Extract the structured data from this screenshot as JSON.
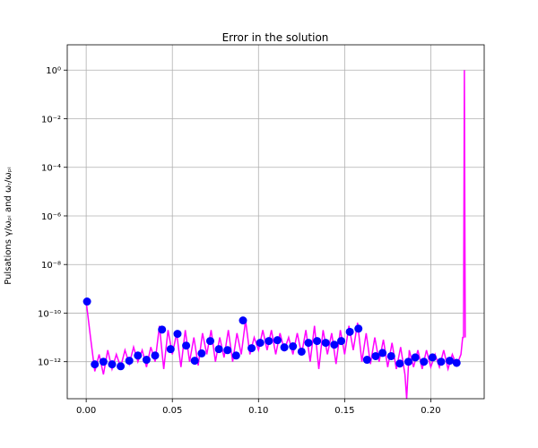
{
  "chart_data": {
    "type": "line",
    "title": "Error in the solution",
    "y_label": "Pulsations  γ/ωₚᵢ and ωᵣ/ωₚᵢ",
    "xlim": [
      -0.011,
      0.231
    ],
    "ylim": [
      3e-14,
      11
    ],
    "log_y": true,
    "grid": true,
    "xticks": [
      {
        "value": 0,
        "label": "0.00"
      },
      0.05,
      {
        "value": 0.1,
        "label": "0.10"
      },
      0.15,
      {
        "value": 0.2,
        "label": "0.20"
      }
    ],
    "yticks": [
      {
        "value": 1,
        "label": "10⁰"
      },
      {
        "value": 0.01,
        "label": "10⁻²"
      },
      {
        "value": 0.0001,
        "label": "10⁻⁴"
      },
      {
        "value": 1e-06,
        "label": "10⁻⁶"
      },
      {
        "value": 1e-08,
        "label": "10⁻⁸"
      },
      {
        "value": 1e-10,
        "label": "10⁻¹⁰"
      },
      {
        "value": 1e-12,
        "label": "10⁻¹²"
      }
    ],
    "series": [
      {
        "style": "line",
        "color": "#ff00ff",
        "x": [
          0,
          0.0025,
          0.005,
          0.0075,
          0.01,
          0.0125,
          0.015,
          0.0175,
          0.02,
          0.0225,
          0.025,
          0.0275,
          0.03,
          0.0325,
          0.035,
          0.0375,
          0.04,
          0.0425,
          0.045,
          0.0475,
          0.05,
          0.0525,
          0.055,
          0.0575,
          0.06,
          0.0625,
          0.065,
          0.0675,
          0.07,
          0.0725,
          0.075,
          0.0775,
          0.08,
          0.0825,
          0.085,
          0.0875,
          0.09,
          0.0925,
          0.095,
          0.0975,
          0.1,
          0.1025,
          0.105,
          0.1075,
          0.11,
          0.1125,
          0.115,
          0.1175,
          0.12,
          0.1225,
          0.125,
          0.1275,
          0.13,
          0.1325,
          0.135,
          0.1375,
          0.14,
          0.1425,
          0.145,
          0.1475,
          0.15,
          0.1525,
          0.155,
          0.1575,
          0.16,
          0.1625,
          0.165,
          0.1675,
          0.17,
          0.1725,
          0.175,
          0.1775,
          0.18,
          0.1825,
          0.185,
          0.186,
          0.1875,
          0.19,
          0.1925,
          0.195,
          0.1975,
          0.2,
          0.2025,
          0.205,
          0.2075,
          0.21,
          0.2125,
          0.215,
          0.2175,
          0.2185,
          0.219,
          0.2195,
          0.22
        ],
        "values": [
          3e-10,
          1e-11,
          4e-13,
          2e-12,
          3e-13,
          3e-12,
          5e-13,
          2e-12,
          6e-13,
          3e-12,
          8e-13,
          4e-12,
          1e-12,
          3e-12,
          6e-13,
          4e-12,
          1e-12,
          3e-11,
          5e-13,
          2e-11,
          2e-12,
          1.5e-11,
          6e-13,
          2e-11,
          1e-12,
          1e-11,
          7e-13,
          1.5e-11,
          2e-12,
          2e-11,
          1e-12,
          1e-11,
          1.5e-12,
          2e-11,
          1e-12,
          1.5e-11,
          2e-12,
          5e-11,
          2e-12,
          1e-11,
          3e-12,
          2e-11,
          3e-12,
          2e-11,
          2e-12,
          1.5e-11,
          3e-12,
          1e-11,
          2e-12,
          1.5e-11,
          2e-12,
          2e-11,
          1e-12,
          3e-11,
          5e-13,
          2e-11,
          2e-12,
          1.5e-11,
          8e-13,
          2e-11,
          2e-12,
          3e-11,
          3e-12,
          4e-11,
          1e-12,
          1.5e-11,
          8e-13,
          1e-11,
          1e-12,
          8e-12,
          6e-13,
          6e-12,
          5e-13,
          4e-12,
          3e-13,
          3e-14,
          3e-12,
          6e-13,
          3e-12,
          5e-13,
          3e-12,
          6e-13,
          2e-12,
          6e-13,
          3e-12,
          5e-13,
          2e-12,
          7e-13,
          2e-12,
          1e-11,
          1e-11,
          1,
          1e-11
        ]
      },
      {
        "style": "markers",
        "color": "#0000ff",
        "x": [
          0.0005,
          0.005,
          0.01,
          0.015,
          0.02,
          0.025,
          0.03,
          0.035,
          0.04,
          0.044,
          0.049,
          0.053,
          0.058,
          0.063,
          0.067,
          0.072,
          0.077,
          0.082,
          0.087,
          0.091,
          0.096,
          0.101,
          0.106,
          0.111,
          0.115,
          0.12,
          0.125,
          0.129,
          0.134,
          0.139,
          0.144,
          0.148,
          0.153,
          0.158,
          0.163,
          0.168,
          0.172,
          0.177,
          0.182,
          0.187,
          0.191,
          0.196,
          0.201,
          0.206,
          0.211,
          0.215
        ],
        "values": [
          3e-10,
          7.8e-13,
          1e-12,
          7.8e-13,
          6.5e-13,
          1.1e-12,
          1.8e-12,
          1.2e-12,
          1.8e-12,
          2.1e-11,
          3.3e-12,
          1.4e-11,
          4.6e-12,
          1.1e-12,
          2.2e-12,
          7.1e-12,
          3.3e-12,
          3e-12,
          1.8e-12,
          5e-11,
          3.6e-12,
          6e-12,
          7.1e-12,
          7.7e-12,
          3.9e-12,
          4.3e-12,
          2.6e-12,
          6e-12,
          7.1e-12,
          6e-12,
          5e-12,
          7.1e-12,
          1.7e-11,
          2.3e-11,
          1.2e-12,
          1.7e-12,
          2.3e-12,
          1.7e-12,
          8.4e-13,
          1e-12,
          1.5e-12,
          1e-12,
          1.5e-12,
          1e-12,
          1.1e-12,
          9e-13
        ]
      }
    ]
  }
}
